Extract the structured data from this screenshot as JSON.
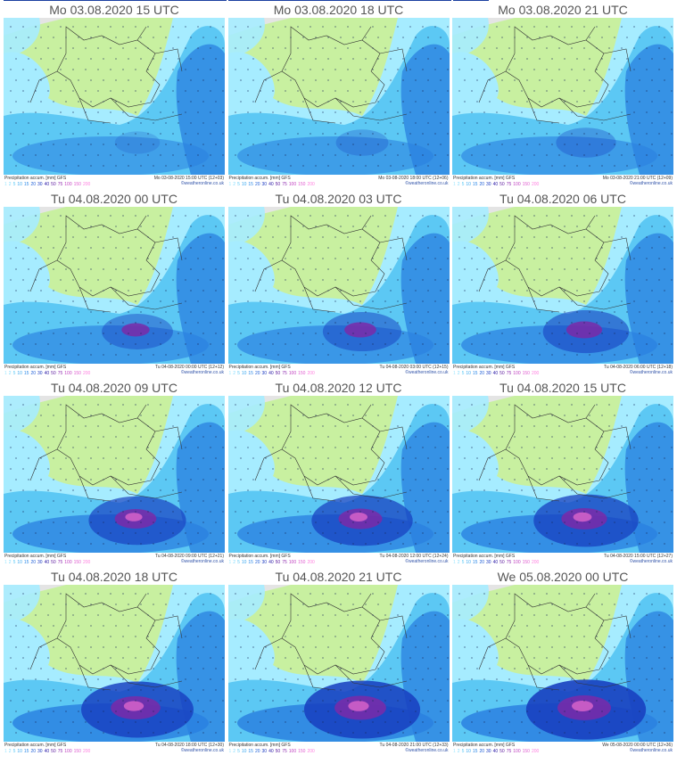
{
  "panels": [
    {
      "title": "Mo 03.08.2020   15 UTC",
      "footer_left": "Precipitation accum. [mm] GFS",
      "footer_right": "Mo 03-08-2020 15:00 UTC (12+03)",
      "brand": "©weatheronline.co.uk",
      "intensity": 0.0
    },
    {
      "title": "Mo 03.08.2020   18 UTC",
      "footer_left": "Precipitation accum. [mm] GFS",
      "footer_right": "Mo 03-08-2020 18:00 UTC (12+06)",
      "brand": "©weatheronline.co.uk",
      "intensity": 0.1
    },
    {
      "title": "Mo 03.08.2020   21 UTC",
      "footer_left": "Precipitation accum. [mm] GFS",
      "footer_right": "Mo 03-08-2020 21:00 UTC (12+09)",
      "brand": "©weatheronline.co.uk",
      "intensity": 0.2
    },
    {
      "title": "Tu 04.08.2020   00 UTC",
      "footer_left": "Precipitation accum. [mm] GFS",
      "footer_right": "Tu 04-08-2020 00:00 UTC (12+12)",
      "brand": "©weatheronline.co.uk",
      "intensity": 0.35
    },
    {
      "title": "Tu 04.08.2020   03 UTC",
      "footer_left": "Precipitation accum. [mm] GFS",
      "footer_right": "Tu 04-08-2020 03:00 UTC (12+15)",
      "brand": "©weatheronline.co.uk",
      "intensity": 0.45
    },
    {
      "title": "Tu 04.08.2020   06 UTC",
      "footer_left": "Precipitation accum. [mm] GFS",
      "footer_right": "Tu 04-08-2020 06:00 UTC (12+18)",
      "brand": "©weatheronline.co.uk",
      "intensity": 0.55
    },
    {
      "title": "Tu 04.08.2020   09 UTC",
      "footer_left": "Precipitation accum. [mm] GFS",
      "footer_right": "Tu 04-08-2020 09:00 UTC (12+21)",
      "brand": "©weatheronline.co.uk",
      "intensity": 0.7
    },
    {
      "title": "Tu 04.08.2020   12 UTC",
      "footer_left": "Precipitation accum. [mm] GFS",
      "footer_right": "Tu 04-08-2020 12:00 UTC (12+24)",
      "brand": "©weatheronline.co.uk",
      "intensity": 0.75
    },
    {
      "title": "Tu 04.08.2020   15 UTC",
      "footer_left": "Precipitation accum. [mm] GFS",
      "footer_right": "Tu 04-08-2020 15:00 UTC (12+27)",
      "brand": "©weatheronline.co.uk",
      "intensity": 0.8
    },
    {
      "title": "Tu 04.08.2020   18 UTC",
      "footer_left": "Precipitation accum. [mm] GFS",
      "footer_right": "Tu 04-08-2020 18:00 UTC (12+30)",
      "brand": "©weatheronline.co.uk",
      "intensity": 0.9
    },
    {
      "title": "Tu 04.08.2020   21 UTC",
      "footer_left": "Precipitation accum. [mm] GFS",
      "footer_right": "Tu 04-08-2020 21:00 UTC (12+33)",
      "brand": "©weatheronline.co.uk",
      "intensity": 0.95
    },
    {
      "title": "We 05.08.2020   00 UTC",
      "footer_left": "Precipitation accum. [mm] GFS",
      "footer_right": "We 05-08-2020 00:00 UTC (12+36)",
      "brand": "©weatheronline.co.uk",
      "intensity": 1.0
    }
  ],
  "legend": [
    {
      "label": "1",
      "color": "#a0e8ff"
    },
    {
      "label": "2",
      "color": "#80dcff"
    },
    {
      "label": "5",
      "color": "#5ac8f5"
    },
    {
      "label": "10",
      "color": "#3aa8f0"
    },
    {
      "label": "15",
      "color": "#2a88e8"
    },
    {
      "label": "20",
      "color": "#2060d8"
    },
    {
      "label": "30",
      "color": "#1838c0"
    },
    {
      "label": "40",
      "color": "#3020a8"
    },
    {
      "label": "50",
      "color": "#6020a0"
    },
    {
      "label": "75",
      "color": "#9030b0"
    },
    {
      "label": "100",
      "color": "#c040c0"
    },
    {
      "label": "150",
      "color": "#e060d0"
    },
    {
      "label": "200",
      "color": "#ff80e0"
    }
  ],
  "colors": {
    "land": "#c8f0a0",
    "sea_gray": "#e4e4e4",
    "light_rain": "#a6ecff",
    "moderate_rain": "#5cc8f4",
    "heavy_rain": "#2a80e0",
    "very_heavy": "#1840c0",
    "extreme": "#7a2aa8",
    "peak": "#d060c8",
    "border": "#333333"
  }
}
